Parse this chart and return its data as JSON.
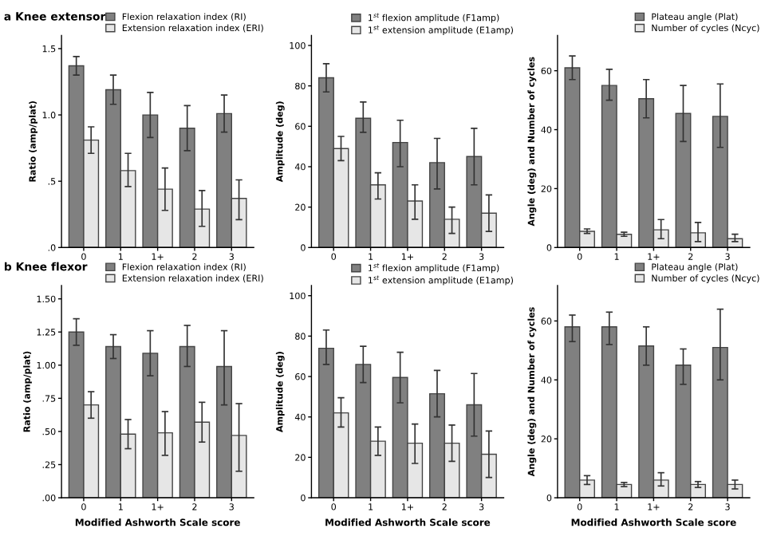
{
  "chart_data": [
    {
      "type": "bar",
      "title": "a Knee extensor",
      "ylabel": "Ratio (amp/plat)",
      "categories": [
        "0",
        "1",
        "1+",
        "2",
        "3"
      ],
      "legend": "top right",
      "ylim": [
        0,
        1.6
      ],
      "yticks": [
        {
          "value": 0,
          "label": ".0"
        },
        {
          "value": 0.5,
          "label": ".5"
        },
        {
          "value": 1.0,
          "label": "1.0"
        },
        {
          "value": 1.5,
          "label": "1.5"
        }
      ],
      "series": [
        {
          "name": "Flexion relaxation index (RI)",
          "color": "#808080",
          "values": [
            1.37,
            1.19,
            1.0,
            0.9,
            1.01
          ],
          "errors": [
            [
              1.3,
              1.44
            ],
            [
              1.08,
              1.3
            ],
            [
              0.83,
              1.17
            ],
            [
              0.73,
              1.07
            ],
            [
              0.87,
              1.15
            ]
          ]
        },
        {
          "name": "Extension relaxation index (ERI)",
          "color": "#e6e6e6",
          "values": [
            0.81,
            0.58,
            0.44,
            0.29,
            0.37
          ],
          "errors": [
            [
              0.71,
              0.91
            ],
            [
              0.46,
              0.71
            ],
            [
              0.28,
              0.6
            ],
            [
              0.16,
              0.43
            ],
            [
              0.21,
              0.51
            ]
          ]
        }
      ]
    },
    {
      "type": "bar",
      "ylabel": "Amplitude (deg)",
      "categories": [
        "0",
        "1",
        "1+",
        "2",
        "3"
      ],
      "legend": "top right",
      "ylim": [
        0,
        105
      ],
      "yticks": [
        0,
        20,
        40,
        60,
        80,
        100
      ],
      "series": [
        {
          "name": "1$^{st}$ flexion amplitude (F1amp)",
          "color": "#808080",
          "values": [
            84,
            64,
            52,
            42,
            45
          ],
          "errors": [
            [
              77,
              91
            ],
            [
              57,
              72
            ],
            [
              40,
              63
            ],
            [
              29,
              54
            ],
            [
              31,
              59
            ]
          ]
        },
        {
          "name": "1$^{st}$ extension amplitude (E1amp)",
          "color": "#e6e6e6",
          "values": [
            49,
            31,
            23,
            14,
            17
          ],
          "errors": [
            [
              43,
              55
            ],
            [
              24,
              37
            ],
            [
              14,
              31
            ],
            [
              7,
              20
            ],
            [
              8,
              26
            ]
          ]
        }
      ]
    },
    {
      "type": "bar",
      "ylabel": "Angle (deg) and Number of cycles",
      "categories": [
        "0",
        "1",
        "1+",
        "2",
        "3"
      ],
      "legend": "top right",
      "ylim": [
        0,
        72
      ],
      "yticks": [
        0,
        20,
        40,
        60
      ],
      "series": [
        {
          "name": "Plateau angle (Plat)",
          "color": "#808080",
          "values": [
            61,
            55,
            50.5,
            45.5,
            44.5
          ],
          "errors": [
            [
              57,
              65
            ],
            [
              50,
              60.5
            ],
            [
              44,
              57
            ],
            [
              36,
              55
            ],
            [
              34,
              55.5
            ]
          ]
        },
        {
          "name": "Number of cycles (Ncyc)",
          "color": "#e6e6e6",
          "values": [
            5.5,
            4.5,
            6,
            5,
            3
          ],
          "errors": [
            [
              4.8,
              6.3
            ],
            [
              3.8,
              5.2
            ],
            [
              3,
              9.5
            ],
            [
              2,
              8.5
            ],
            [
              2,
              4.5
            ]
          ]
        }
      ]
    },
    {
      "type": "bar",
      "title": "b Knee flexor",
      "xlabel": "Modified Ashworth Scale score",
      "ylabel": "Ratio (amp/plat)",
      "categories": [
        "0",
        "1",
        "1+",
        "2",
        "3"
      ],
      "legend": "top right",
      "ylim": [
        0,
        1.6
      ],
      "yticks": [
        {
          "value": 0,
          "label": ".00"
        },
        {
          "value": 0.25,
          "label": ".25"
        },
        {
          "value": 0.5,
          "label": ".50"
        },
        {
          "value": 0.75,
          "label": ".75"
        },
        {
          "value": 1.0,
          "label": "1.00"
        },
        {
          "value": 1.25,
          "label": "1.25"
        },
        {
          "value": 1.5,
          "label": "1.50"
        }
      ],
      "series": [
        {
          "name": "Flexion relaxation index (RI)",
          "color": "#808080",
          "values": [
            1.25,
            1.14,
            1.09,
            1.14,
            0.99
          ],
          "errors": [
            [
              1.15,
              1.35
            ],
            [
              1.05,
              1.23
            ],
            [
              0.92,
              1.26
            ],
            [
              0.99,
              1.3
            ],
            [
              0.7,
              1.26
            ]
          ]
        },
        {
          "name": "Extension relaxation index (ERI)",
          "color": "#e6e6e6",
          "values": [
            0.7,
            0.48,
            0.49,
            0.57,
            0.47
          ],
          "errors": [
            [
              0.6,
              0.8
            ],
            [
              0.37,
              0.59
            ],
            [
              0.32,
              0.65
            ],
            [
              0.42,
              0.72
            ],
            [
              0.2,
              0.71
            ]
          ]
        }
      ]
    },
    {
      "type": "bar",
      "xlabel": "Modified Ashworth Scale score",
      "ylabel": "Amplitude (deg)",
      "categories": [
        "0",
        "1",
        "1+",
        "2",
        "3"
      ],
      "legend": "top right",
      "ylim": [
        0,
        105
      ],
      "yticks": [
        0,
        20,
        40,
        60,
        80,
        100
      ],
      "series": [
        {
          "name": "1$^{st}$ flexion amplitude (F1amp)",
          "color": "#808080",
          "values": [
            74,
            66,
            59.5,
            51.5,
            46
          ],
          "errors": [
            [
              66,
              83
            ],
            [
              57,
              75
            ],
            [
              47,
              72
            ],
            [
              40,
              63
            ],
            [
              30.5,
              61.5
            ]
          ]
        },
        {
          "name": "1$^{st}$ extension amplitude (E1amp)",
          "color": "#e6e6e6",
          "values": [
            42,
            28,
            27,
            27,
            21.5
          ],
          "errors": [
            [
              35,
              49.5
            ],
            [
              21,
              35
            ],
            [
              17,
              36.5
            ],
            [
              18,
              36
            ],
            [
              10,
              33
            ]
          ]
        }
      ]
    },
    {
      "type": "bar",
      "xlabel": "Modified Ashworth Scale score",
      "ylabel": "Angle (deg) and Number of cycles",
      "categories": [
        "0",
        "1",
        "1+",
        "2",
        "3"
      ],
      "legend": "top right",
      "ylim": [
        0,
        72
      ],
      "yticks": [
        0,
        20,
        40,
        60
      ],
      "series": [
        {
          "name": "Plateau angle (Plat)",
          "color": "#808080",
          "values": [
            58,
            58,
            51.5,
            45,
            51
          ],
          "errors": [
            [
              53,
              62
            ],
            [
              52,
              63
            ],
            [
              45,
              58
            ],
            [
              38.5,
              50.5
            ],
            [
              40,
              64
            ]
          ]
        },
        {
          "name": "Number of cycles (Ncyc)",
          "color": "#e6e6e6",
          "values": [
            6,
            4.5,
            6,
            4.5,
            4.5
          ],
          "errors": [
            [
              4.5,
              7.5
            ],
            [
              3.8,
              5.2
            ],
            [
              4,
              8.5
            ],
            [
              3.5,
              5.5
            ],
            [
              3,
              6
            ]
          ]
        }
      ]
    }
  ]
}
